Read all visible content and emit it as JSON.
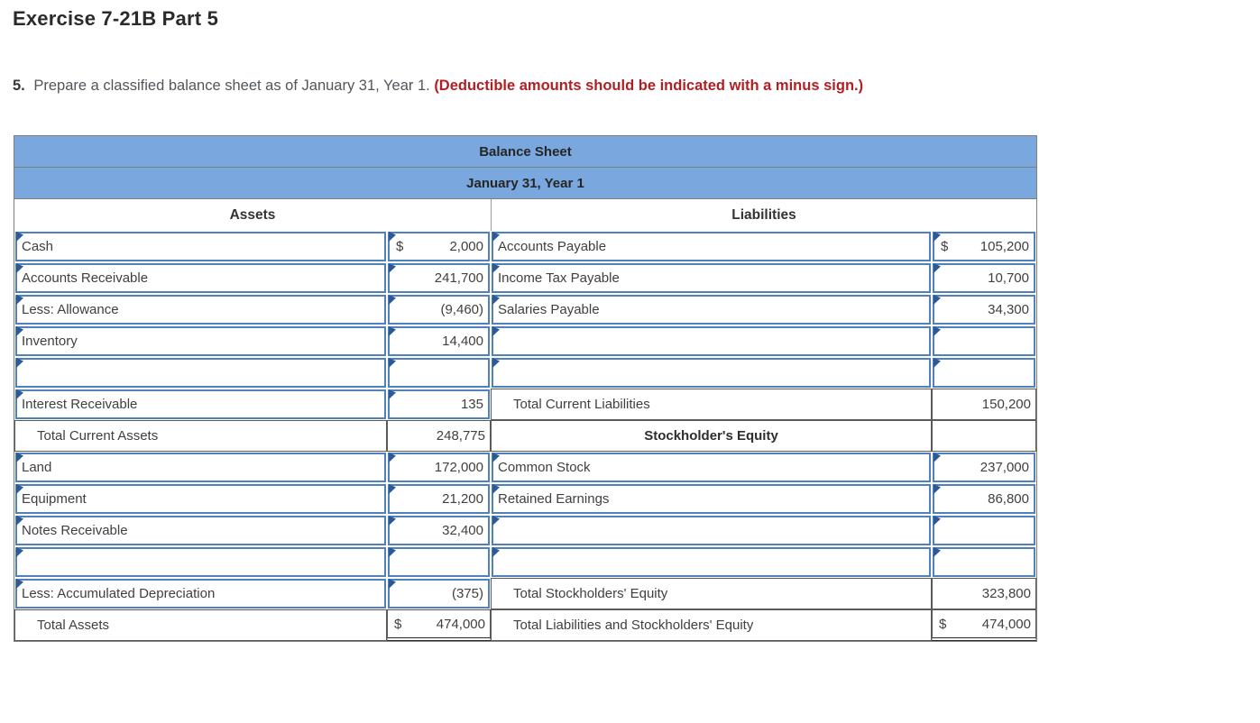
{
  "page": {
    "title": "Exercise 7-21B Part 5",
    "instruction": {
      "number": "5.",
      "text": " Prepare a classified balance sheet as of January 31, Year 1. ",
      "warning": "(Deductible amounts should be indicated with a minus sign.)"
    }
  },
  "colors": {
    "header_blue": "#79a7de",
    "input_cell_border_blue": "#4e81be",
    "input_marker_blue": "#2d5a96",
    "warning_red": "#b01f24",
    "table_outline_gray": "#7f7f7f"
  },
  "balance_sheet": {
    "title": "Balance Sheet",
    "date": "January 31, Year 1",
    "left_header": "Assets",
    "right_header": "Liabilities",
    "rows": [
      {
        "left": {
          "label": "Cash",
          "currency": "$",
          "amount": "2,000"
        },
        "right": {
          "label": "Accounts Payable",
          "currency": "$",
          "amount": "105,200"
        }
      },
      {
        "left": {
          "label": "Accounts Receivable",
          "amount": "241,700"
        },
        "right": {
          "label": "Income Tax Payable",
          "amount": "10,700"
        }
      },
      {
        "left": {
          "label": "Less: Allowance",
          "amount": "(9,460)"
        },
        "right": {
          "label": "Salaries Payable",
          "amount": "34,300"
        }
      },
      {
        "left": {
          "label": "Inventory",
          "amount": "14,400"
        },
        "right": {
          "label": "",
          "amount": ""
        }
      },
      {
        "left": {
          "label": "",
          "amount": ""
        },
        "right": {
          "label": "",
          "amount": ""
        }
      },
      {
        "left": {
          "label": "Interest Receivable",
          "amount": "135"
        },
        "right": {
          "label": "Total Current Liabilities",
          "amount": "150,200"
        }
      },
      {
        "left": {
          "label": "Total Current Assets",
          "amount": "248,775"
        },
        "right": {
          "label": "Stockholder's Equity",
          "amount": ""
        }
      },
      {
        "left": {
          "label": "Land",
          "amount": "172,000"
        },
        "right": {
          "label": "Common Stock",
          "amount": "237,000"
        }
      },
      {
        "left": {
          "label": "Equipment",
          "amount": "21,200"
        },
        "right": {
          "label": "Retained Earnings",
          "amount": "86,800"
        }
      },
      {
        "left": {
          "label": "Notes Receivable",
          "amount": "32,400"
        },
        "right": {
          "label": "",
          "amount": ""
        }
      },
      {
        "left": {
          "label": "",
          "amount": ""
        },
        "right": {
          "label": "",
          "amount": ""
        }
      },
      {
        "left": {
          "label": "Less: Accumulated Depreciation",
          "amount": "(375)"
        },
        "right": {
          "label": "Total Stockholders' Equity",
          "amount": "323,800"
        }
      },
      {
        "left": {
          "label": "Total Assets",
          "currency": "$",
          "amount": "474,000"
        },
        "right": {
          "label": "Total Liabilities and Stockholders' Equity",
          "currency": "$",
          "amount": "474,000"
        }
      }
    ]
  }
}
